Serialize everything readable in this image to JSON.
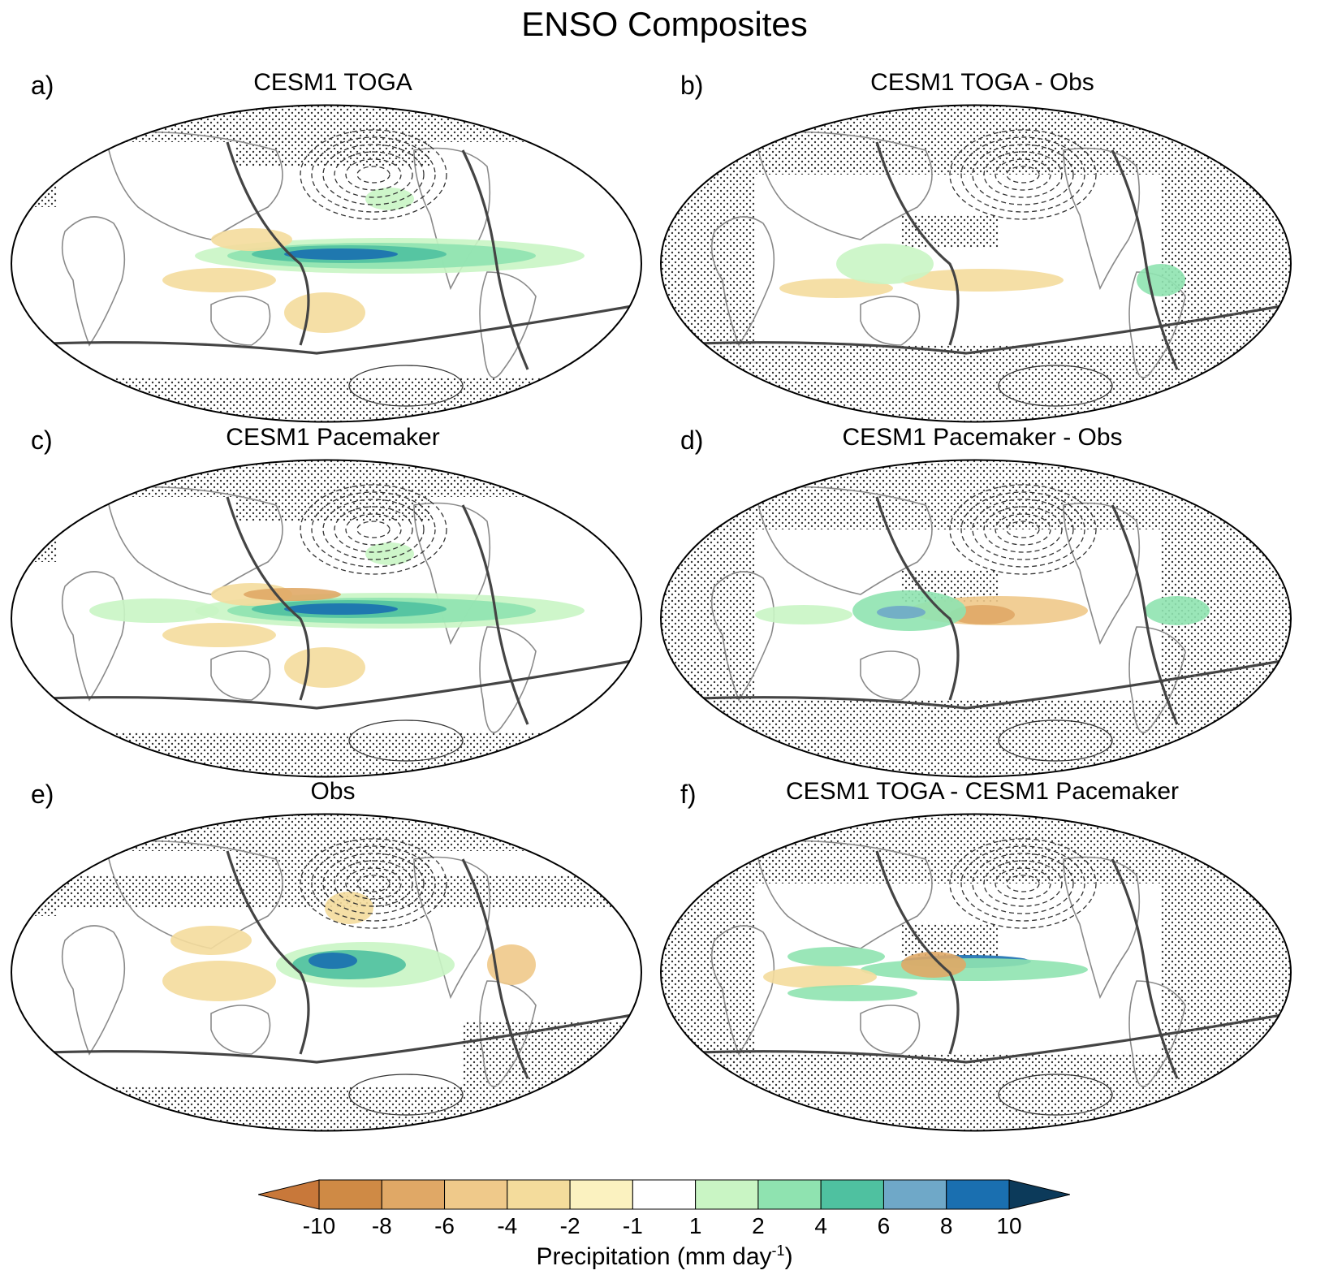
{
  "title": "ENSO Composites",
  "panels": [
    {
      "letter": "a)",
      "title": "CESM1 TOGA",
      "pattern": "toga"
    },
    {
      "letter": "b)",
      "title": "CESM1 TOGA - Obs",
      "pattern": "diff1"
    },
    {
      "letter": "c)",
      "title": "CESM1 Pacemaker",
      "pattern": "pace"
    },
    {
      "letter": "d)",
      "title": "CESM1 Pacemaker - Obs",
      "pattern": "diff2"
    },
    {
      "letter": "e)",
      "title": "Obs",
      "pattern": "obs"
    },
    {
      "letter": "f)",
      "title": "CESM1 TOGA - CESM1 Pacemaker",
      "pattern": "diff3"
    }
  ],
  "colorbar": {
    "ticks": [
      "-10",
      "-8",
      "-6",
      "-4",
      "-2",
      "-1",
      "1",
      "2",
      "4",
      "6",
      "8",
      "10"
    ],
    "colors": [
      "#c8783a",
      "#cf8a45",
      "#e0a866",
      "#efc98a",
      "#f4dc9c",
      "#fbf2c0",
      "#ffffff",
      "#c9f5c4",
      "#8fe3b0",
      "#4fc1a0",
      "#6fa8c8",
      "#1a6fb0",
      "#0c3a5a"
    ],
    "label_main": "Precipitation (mm day",
    "label_sup": "-1",
    "label_end": ")"
  }
}
